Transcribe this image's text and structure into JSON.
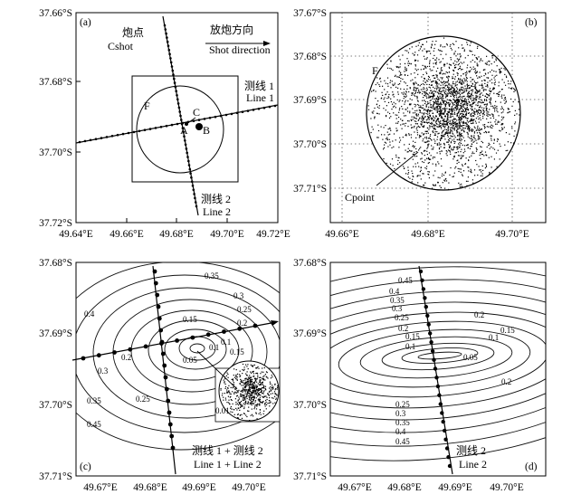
{
  "panels": {
    "a": {
      "label": "(a)",
      "y_ticks": [
        "37.66°S",
        "37.68°S",
        "37.70°S",
        "37.72°S"
      ],
      "x_ticks": [
        "49.64°E",
        "49.66°E",
        "49.68°E",
        "49.70°E",
        "49.72°E"
      ],
      "shot_cn": "炮点",
      "shot_en": "Cshot",
      "dir_cn": "放炮方向",
      "dir_en": "Shot direction",
      "line1_cn": "测线 1",
      "line1_en": "Line 1",
      "line2_cn": "测线 2",
      "line2_en": "Line 2",
      "lbl_F": "F",
      "lbl_A": "A",
      "lbl_B": "B",
      "lbl_C": "C"
    },
    "b": {
      "label": "(b)",
      "y_ticks": [
        "37.67°S",
        "37.68°S",
        "37.69°S",
        "37.70°S",
        "37.71°S"
      ],
      "x_ticks": [
        "49.66°E",
        "49.68°E",
        "49.70°E"
      ],
      "lbl_F": "F",
      "lbl_cpoint": "Cpoint"
    },
    "c": {
      "label": "(c)",
      "y_ticks": [
        "37.68°S",
        "37.69°S",
        "37.70°S",
        "37.71°S"
      ],
      "x_ticks": [
        "49.67°E",
        "49.68°E",
        "49.69°E",
        "49.70°E"
      ],
      "legend_cn": "测线 1 + 测线 2",
      "legend_en": "Line 1 + Line 2",
      "contour_labels": [
        "0.35",
        "0.3",
        "0.25",
        "0.2",
        "0.15",
        "0.1",
        "0.05",
        "0.4",
        "0.3",
        "0.35",
        "0.2",
        "0.25",
        "0.45",
        "0.01",
        "0.1",
        "0.15"
      ]
    },
    "d": {
      "label": "(d)",
      "y_ticks": [
        "37.68°S",
        "37.69°S",
        "37.70°S",
        "37.71°S"
      ],
      "x_ticks": [
        "49.67°E",
        "49.68°E",
        "49.69°E",
        "49.70°E"
      ],
      "legend_cn": "测线 2",
      "legend_en": "Line 2",
      "contour_labels": [
        "0.45",
        "0.4",
        "0.35",
        "0.3",
        "0.25",
        "0.2",
        "0.15",
        "0.1",
        "0.05",
        "0.1",
        "0.15",
        "0.2",
        "0.2",
        "0.25",
        "0.3",
        "0.35",
        "0.4",
        "0.45"
      ]
    }
  }
}
